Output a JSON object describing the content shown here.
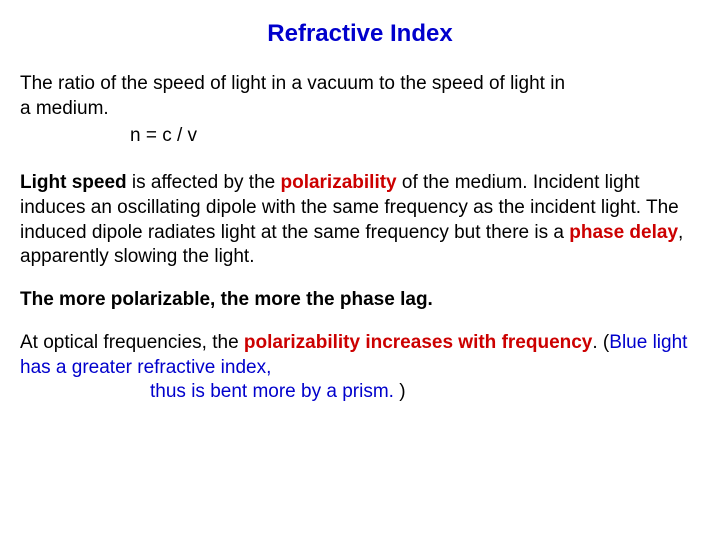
{
  "colors": {
    "title": "#0000cc",
    "body_text": "#000000",
    "highlight_red": "#cc0000",
    "highlight_blue": "#0000cc",
    "background": "#ffffff"
  },
  "typography": {
    "title_fontsize": 24,
    "body_fontsize": 19,
    "font_family": "Arial",
    "title_weight": "bold"
  },
  "title": "Refractive Index",
  "definition_line1": "The ratio of the speed of light in a vacuum to the speed of light in",
  "definition_line2": "a medium.",
  "formula": "n = c / v",
  "p2_a": "Light speed",
  "p2_b": " is affected by the ",
  "p2_c": "polarizability",
  "p2_d": " of the medium. Incident light  induces an oscillating dipole with the same frequency as the incident light.  The induced dipole radiates light at the same frequency but there is a ",
  "p2_e": "phase delay",
  "p2_f": ", apparently slowing the light.",
  "p3": "The more polarizable, the more the phase lag.",
  "p4_a": "At optical frequencies, the ",
  "p4_b": "polarizability increases with frequency",
  "p4_c": ". (",
  "p4_d": "Blue light has a greater refractive index,",
  "p4_e": "thus is bent more by a prism. ",
  "p4_f": ")"
}
